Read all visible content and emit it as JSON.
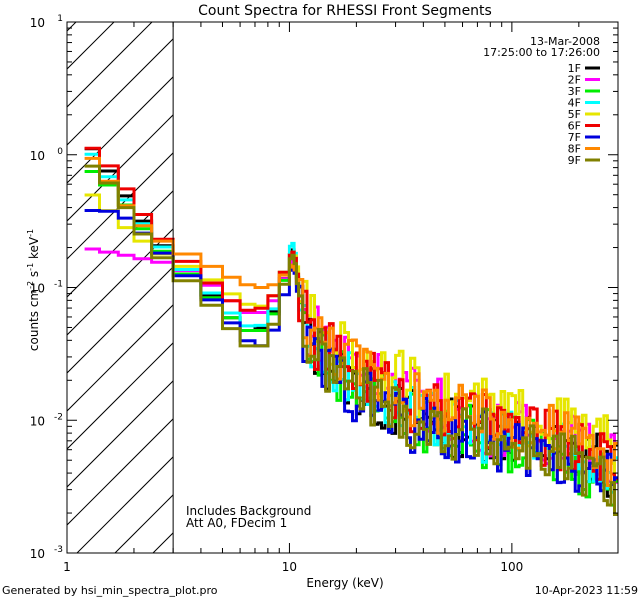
{
  "chart_data": {
    "type": "line",
    "title": "Count Spectra for RHESSI Front Segments",
    "xlabel": "Energy (keV)",
    "ylabel_main": "counts cm",
    "ylabel_exp1": "-2",
    "ylabel_s": " s",
    "ylabel_exp2": "-1",
    "ylabel_kev": " keV",
    "ylabel_exp3": "-1",
    "x_scale": "log",
    "y_scale": "log",
    "xlim": [
      1,
      300
    ],
    "ylim": [
      0.001,
      10
    ],
    "x_ticks": [
      {
        "value": 1,
        "label": "1"
      },
      {
        "value": 10,
        "label": "10"
      },
      {
        "value": 100,
        "label": "100"
      }
    ],
    "y_ticks": [
      {
        "value": 10,
        "base": "10",
        "exp": "1"
      },
      {
        "value": 1,
        "base": "10",
        "exp": "0"
      },
      {
        "value": 0.1,
        "base": "10",
        "exp": "-1"
      },
      {
        "value": 0.01,
        "base": "10",
        "exp": "-2"
      },
      {
        "value": 0.001,
        "base": "10",
        "exp": "-3"
      }
    ],
    "hatched_region": {
      "from": 1,
      "to": 3
    },
    "date": "13-Mar-2008",
    "time_range": "17:25:00 to 17:26:00",
    "annotations": [
      "Includes Background",
      "Att A0, FDecim 1"
    ],
    "series": [
      {
        "name": "1F",
        "color": "#000000",
        "x": [
          1.2,
          1.4,
          1.7,
          2.0,
          2.4,
          3.0,
          4.0,
          5.0,
          6.0,
          7.0,
          8.0,
          9.0,
          10.0,
          10.5,
          11.0,
          12.0,
          14.0,
          17.0,
          20.0,
          25.0,
          30.0,
          35.0,
          40.0,
          50.0,
          60.0,
          80.0,
          100.0,
          130.0,
          160.0,
          200.0,
          250.0,
          300.0
        ],
        "y": [
          1.3,
          0.95,
          0.6,
          0.4,
          0.25,
          0.17,
          0.11,
          0.07,
          0.05,
          0.045,
          0.055,
          0.08,
          0.17,
          0.2,
          0.1,
          0.04,
          0.03,
          0.022,
          0.018,
          0.014,
          0.012,
          0.011,
          0.01,
          0.009,
          0.0085,
          0.008,
          0.0075,
          0.0065,
          0.006,
          0.0055,
          0.005,
          0.004
        ]
      },
      {
        "name": "2F",
        "color": "#ff00ff",
        "x": [
          1.2,
          1.4,
          1.7,
          2.0,
          2.4,
          3.0,
          4.0,
          5.0,
          6.0,
          7.0,
          8.0,
          9.0,
          10.0,
          10.5,
          11.0,
          12.0,
          14.0,
          17.0,
          20.0,
          25.0,
          30.0,
          35.0,
          40.0,
          50.0,
          60.0,
          80.0,
          100.0,
          130.0,
          160.0,
          200.0,
          250.0,
          300.0
        ],
        "y": [
          0.2,
          0.19,
          0.18,
          0.17,
          0.16,
          0.15,
          0.12,
          0.09,
          0.07,
          0.06,
          0.07,
          0.09,
          0.15,
          0.16,
          0.09,
          0.05,
          0.045,
          0.035,
          0.028,
          0.022,
          0.018,
          0.016,
          0.014,
          0.012,
          0.011,
          0.009,
          0.0085,
          0.008,
          0.0072,
          0.0065,
          0.0055,
          0.0045
        ]
      },
      {
        "name": "3F",
        "color": "#00ee00",
        "x": [
          1.2,
          1.4,
          1.7,
          2.0,
          2.4,
          3.0,
          4.0,
          5.0,
          6.0,
          7.0,
          8.0,
          9.0,
          10.0,
          10.5,
          11.0,
          12.0,
          14.0,
          17.0,
          20.0,
          25.0,
          30.0,
          35.0,
          40.0,
          50.0,
          60.0,
          80.0,
          100.0,
          130.0,
          160.0,
          200.0,
          250.0,
          300.0
        ],
        "y": [
          0.8,
          0.7,
          0.5,
          0.35,
          0.22,
          0.16,
          0.1,
          0.07,
          0.05,
          0.045,
          0.05,
          0.08,
          0.16,
          0.19,
          0.1,
          0.04,
          0.03,
          0.023,
          0.019,
          0.015,
          0.012,
          0.01,
          0.009,
          0.0085,
          0.008,
          0.0072,
          0.0065,
          0.006,
          0.0052,
          0.0045,
          0.004,
          0.0035
        ]
      },
      {
        "name": "4F",
        "color": "#00ffff",
        "x": [
          1.2,
          1.4,
          1.7,
          2.0,
          2.4,
          3.0,
          4.0,
          5.0,
          6.0,
          7.0,
          8.0,
          9.0,
          10.0,
          10.5,
          11.0,
          12.0,
          14.0,
          17.0,
          20.0,
          25.0,
          30.0,
          35.0,
          40.0,
          50.0,
          60.0,
          80.0,
          100.0,
          130.0,
          160.0,
          200.0,
          250.0,
          300.0
        ],
        "y": [
          1.2,
          0.85,
          0.55,
          0.38,
          0.24,
          0.17,
          0.11,
          0.075,
          0.055,
          0.048,
          0.056,
          0.085,
          0.2,
          0.22,
          0.1,
          0.042,
          0.032,
          0.024,
          0.019,
          0.015,
          0.013,
          0.011,
          0.01,
          0.0092,
          0.0085,
          0.008,
          0.0072,
          0.0065,
          0.0058,
          0.0052,
          0.0046,
          0.004
        ]
      },
      {
        "name": "5F",
        "color": "#e6e600",
        "x": [
          1.2,
          1.4,
          1.7,
          2.0,
          2.4,
          3.0,
          4.0,
          5.0,
          6.0,
          7.0,
          8.0,
          9.0,
          10.0,
          10.5,
          11.0,
          12.0,
          14.0,
          17.0,
          20.0,
          25.0,
          30.0,
          35.0,
          40.0,
          50.0,
          60.0,
          80.0,
          100.0,
          130.0,
          160.0,
          200.0,
          250.0,
          300.0
        ],
        "y": [
          0.55,
          0.45,
          0.32,
          0.25,
          0.2,
          0.16,
          0.13,
          0.1,
          0.08,
          0.07,
          0.075,
          0.1,
          0.17,
          0.19,
          0.13,
          0.06,
          0.045,
          0.038,
          0.032,
          0.026,
          0.021,
          0.018,
          0.016,
          0.014,
          0.013,
          0.012,
          0.011,
          0.01,
          0.0095,
          0.0085,
          0.007,
          0.006
        ]
      },
      {
        "name": "6F",
        "color": "#ee0000",
        "x": [
          1.2,
          1.4,
          1.7,
          2.0,
          2.4,
          3.0,
          4.0,
          5.0,
          6.0,
          7.0,
          8.0,
          9.0,
          10.0,
          10.5,
          11.0,
          12.0,
          14.0,
          17.0,
          20.0,
          25.0,
          30.0,
          35.0,
          40.0,
          50.0,
          60.0,
          80.0,
          100.0,
          130.0,
          160.0,
          200.0,
          250.0,
          300.0
        ],
        "y": [
          1.25,
          1.0,
          0.68,
          0.45,
          0.28,
          0.19,
          0.13,
          0.09,
          0.07,
          0.065,
          0.075,
          0.1,
          0.17,
          0.19,
          0.11,
          0.045,
          0.035,
          0.03,
          0.025,
          0.02,
          0.016,
          0.014,
          0.012,
          0.011,
          0.01,
          0.0092,
          0.0085,
          0.0078,
          0.007,
          0.0062,
          0.0055,
          0.0045
        ]
      },
      {
        "name": "7F",
        "color": "#0000dd",
        "x": [
          1.2,
          1.4,
          1.7,
          2.0,
          2.4,
          3.0,
          4.0,
          5.0,
          6.0,
          7.0,
          8.0,
          9.0,
          10.0,
          10.5,
          11.0,
          12.0,
          14.0,
          17.0,
          20.0,
          25.0,
          30.0,
          35.0,
          40.0,
          50.0,
          60.0,
          80.0,
          100.0,
          130.0,
          160.0,
          200.0,
          250.0,
          300.0
        ],
        "y": [
          0.38,
          0.38,
          0.37,
          0.3,
          0.22,
          0.15,
          0.1,
          0.065,
          0.045,
          0.035,
          0.038,
          0.06,
          0.13,
          0.15,
          0.08,
          0.035,
          0.026,
          0.02,
          0.016,
          0.013,
          0.011,
          0.0095,
          0.0088,
          0.008,
          0.0075,
          0.0068,
          0.0062,
          0.0056,
          0.005,
          0.0045,
          0.004,
          0.0035
        ]
      },
      {
        "name": "8F",
        "color": "#ff8800",
        "x": [
          1.2,
          1.4,
          1.7,
          2.0,
          2.4,
          3.0,
          4.0,
          5.0,
          6.0,
          7.0,
          8.0,
          9.0,
          10.0,
          10.5,
          11.0,
          12.0,
          14.0,
          17.0,
          20.0,
          25.0,
          30.0,
          35.0,
          40.0,
          50.0,
          60.0,
          80.0,
          100.0,
          130.0,
          160.0,
          200.0,
          250.0,
          300.0
        ],
        "y": [
          1.1,
          0.8,
          0.5,
          0.34,
          0.25,
          0.2,
          0.16,
          0.13,
          0.11,
          0.1,
          0.1,
          0.11,
          0.14,
          0.15,
          0.1,
          0.05,
          0.04,
          0.032,
          0.026,
          0.021,
          0.017,
          0.015,
          0.013,
          0.012,
          0.011,
          0.01,
          0.0095,
          0.0088,
          0.008,
          0.007,
          0.0058,
          0.0048
        ]
      },
      {
        "name": "9F",
        "color": "#808000",
        "x": [
          1.2,
          1.4,
          1.7,
          2.0,
          2.4,
          3.0,
          4.0,
          5.0,
          6.0,
          7.0,
          8.0,
          9.0,
          10.0,
          10.5,
          11.0,
          12.0,
          14.0,
          17.0,
          20.0,
          25.0,
          30.0,
          35.0,
          40.0,
          50.0,
          60.0,
          80.0,
          100.0,
          130.0,
          160.0,
          200.0,
          250.0,
          300.0
        ],
        "y": [
          0.9,
          0.75,
          0.5,
          0.32,
          0.2,
          0.14,
          0.09,
          0.06,
          0.04,
          0.033,
          0.04,
          0.07,
          0.16,
          0.18,
          0.09,
          0.038,
          0.028,
          0.021,
          0.017,
          0.014,
          0.012,
          0.01,
          0.009,
          0.0085,
          0.008,
          0.0072,
          0.0065,
          0.006,
          0.0052,
          0.0045,
          0.0035,
          0.003
        ]
      }
    ]
  },
  "footer": {
    "left": "Generated by hsi_min_spectra_plot.pro",
    "right": "10-Apr-2023 11:59"
  }
}
